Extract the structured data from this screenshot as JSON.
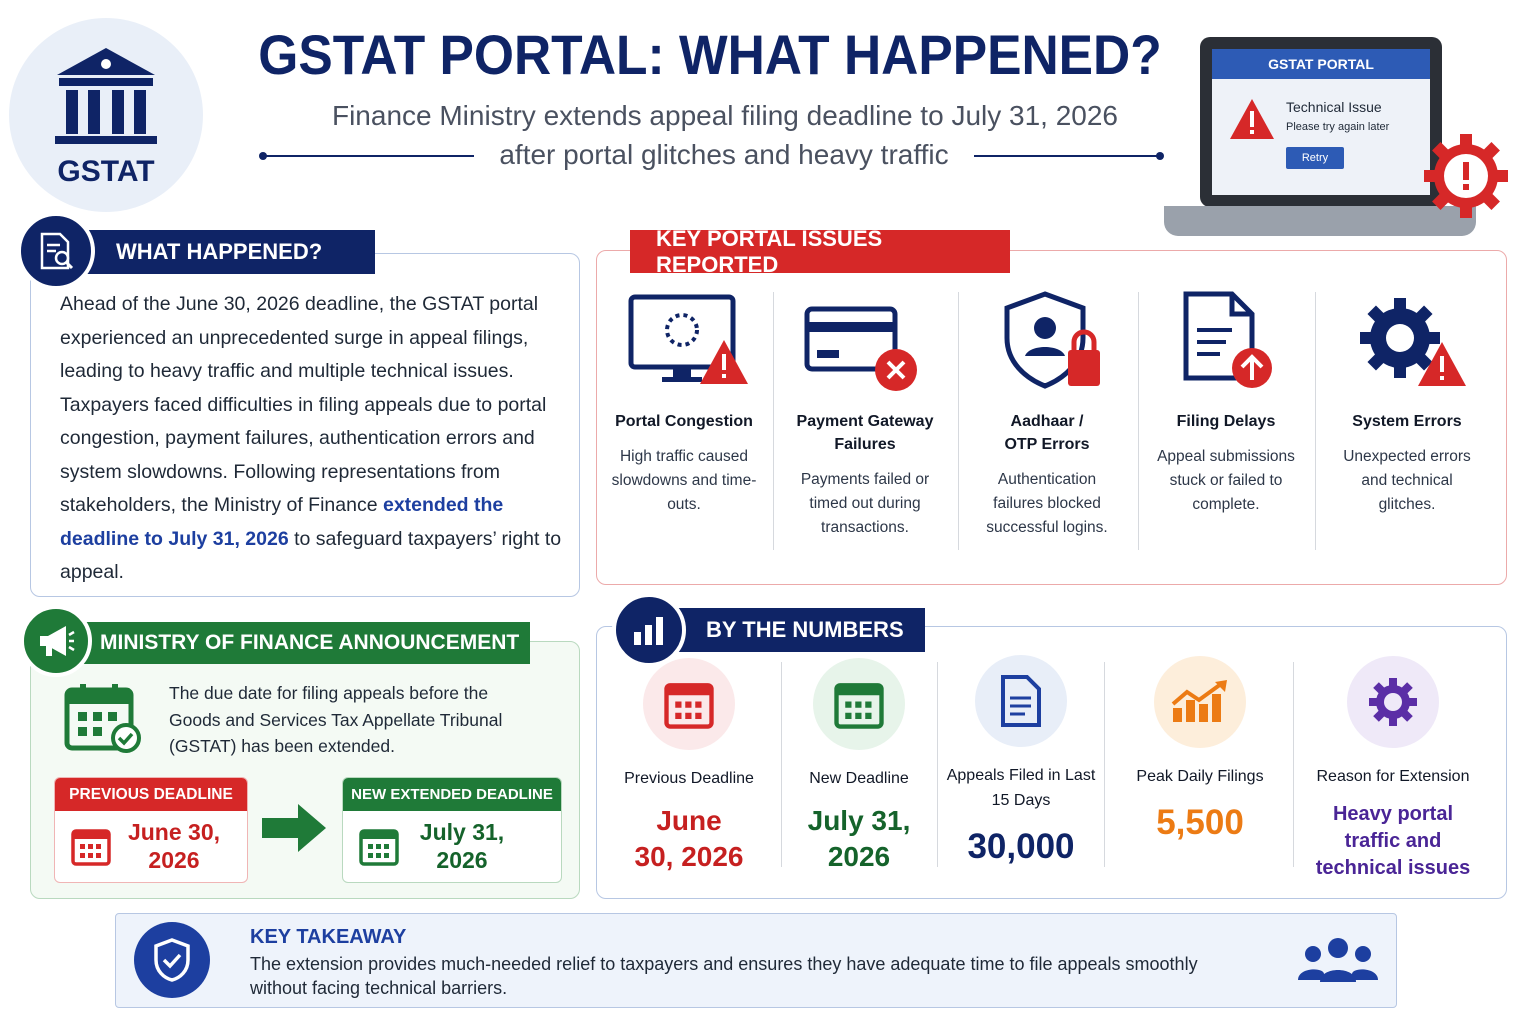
{
  "header": {
    "logo_text": "GSTAT",
    "title": "GSTAT PORTAL: WHAT HAPPENED?",
    "subtitle_line1": "Finance Ministry extends appeal filing deadline to July 31, 2026",
    "subtitle_line2": "after portal glitches and heavy traffic"
  },
  "laptop": {
    "portal": "GSTAT PORTAL",
    "issue": "Technical Issue",
    "message": "Please try again later",
    "button": "Retry"
  },
  "what_happened": {
    "heading": "WHAT HAPPENED?",
    "text_before": "Ahead of the June 30, 2026 deadline, the GSTAT portal experienced an unprecedented surge in appeal filings, leading to heavy traffic and multiple technical issues. Taxpayers faced difficulties in filing appeals due to portal congestion, payment failures, authentication errors and system slowdowns. Following representations from stakeholders, the Ministry of Finance ",
    "highlight": "extended the deadline to July 31, 2026",
    "text_after": " to safeguard taxpayers’ right to appeal."
  },
  "issues": {
    "heading": "KEY PORTAL ISSUES REPORTED",
    "items": [
      {
        "title": "Portal Congestion",
        "description": "High traffic caused slowdowns and time-outs."
      },
      {
        "title": "Payment Gateway Failures",
        "description": "Payments failed or timed out during transactions."
      },
      {
        "title": "Aadhaar / OTP Errors",
        "description": "Authentication failures blocked successful logins."
      },
      {
        "title": "Filing Delays",
        "description": "Appeal submissions stuck or failed to complete."
      },
      {
        "title": "System Errors",
        "description": "Unexpected errors and technical glitches."
      }
    ]
  },
  "announcement": {
    "heading": "MINISTRY OF FINANCE ANNOUNCEMENT",
    "text": "The due date for filing appeals before the Goods and Services Tax Appellate Tribunal (GSTAT) has been extended.",
    "previous": {
      "label": "PREVIOUS DEADLINE",
      "date": "June 30, 2026"
    },
    "new": {
      "label": "NEW EXTENDED DEADLINE",
      "date": "July 31, 2026"
    }
  },
  "numbers": {
    "heading": "BY THE NUMBERS",
    "items": [
      {
        "label": "Previous Deadline",
        "value": "June 30, 2026"
      },
      {
        "label": "New Deadline",
        "value": "July 31, 2026"
      },
      {
        "label": "Appeals Filed in Last 15 Days",
        "value": "30,000"
      },
      {
        "label": "Peak Daily Filings",
        "value": "5,500"
      },
      {
        "label": "Reason for Extension",
        "value": "Heavy portal traffic and technical issues"
      }
    ]
  },
  "takeaway": {
    "heading": "KEY TAKEAWAY",
    "text": "The extension provides much-needed relief to taxpayers and ensures they have adequate time to file appeals smoothly without facing technical barriers."
  }
}
